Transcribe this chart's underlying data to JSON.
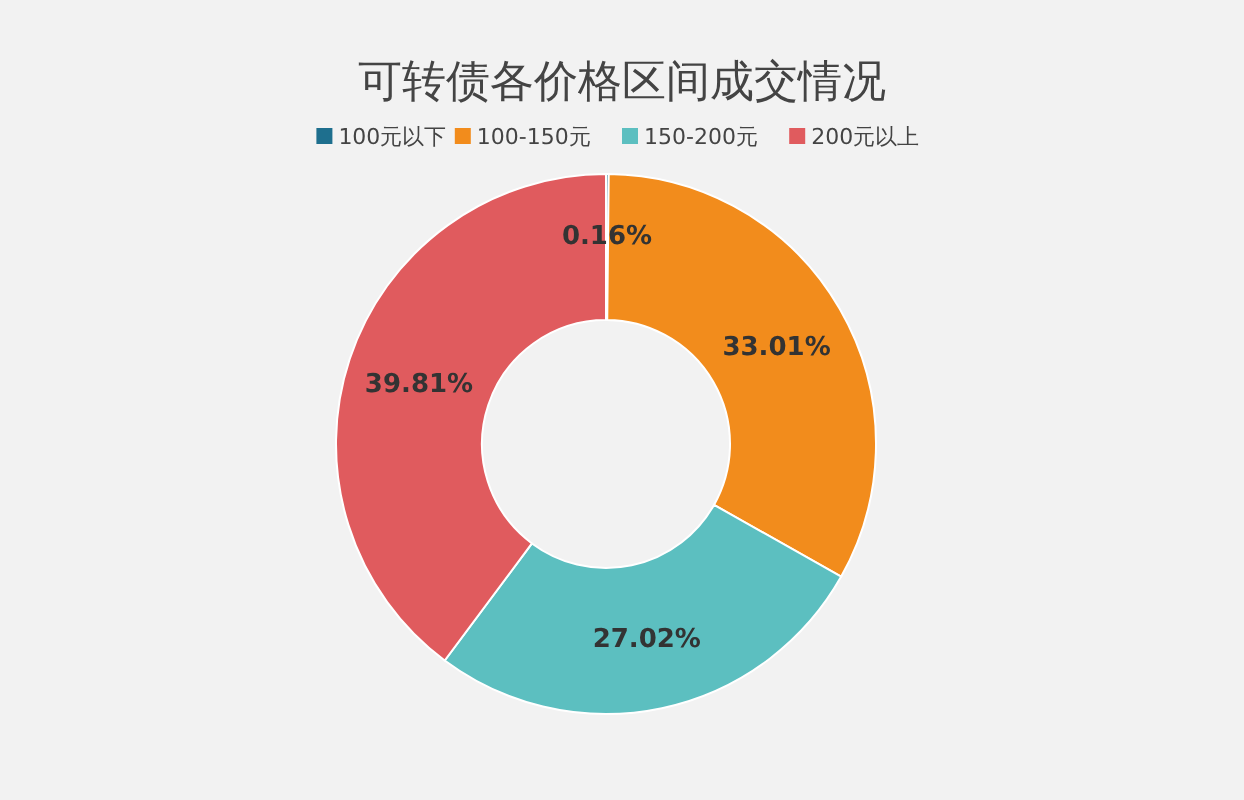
{
  "chart_data": {
    "type": "donut",
    "title": "可转债各价格区间成交情况",
    "categories": [
      "100元以下",
      "100-150元",
      "150-200元",
      "200元以上"
    ],
    "values": [
      0.16,
      33.01,
      27.02,
      39.81
    ],
    "colors": [
      "#1e6f8e",
      "#f28c1c",
      "#5cbfc0",
      "#e05b5e"
    ],
    "value_labels": [
      "0.16%",
      "33.01%",
      "27.02%",
      "39.81%"
    ],
    "legend": "top"
  }
}
